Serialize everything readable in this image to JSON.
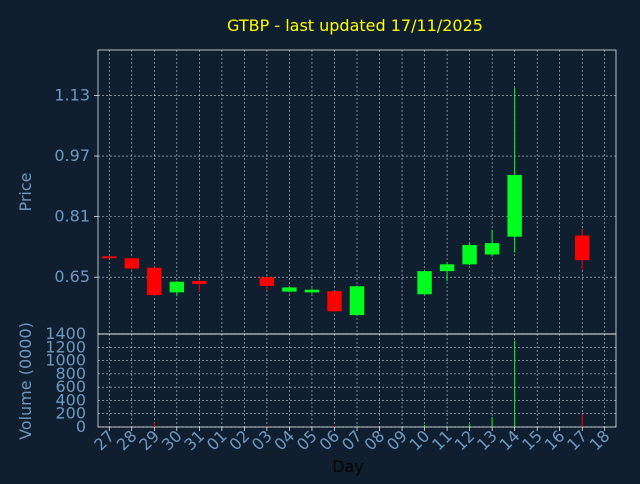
{
  "colors": {
    "background": "#0f1f30",
    "axis": "#ffffff",
    "grid": "#ffffff",
    "title": "#ffff00",
    "label": "#6f98bf",
    "up": "#00ff20",
    "down": "#ff0000"
  },
  "chart_data": [
    {
      "type": "candlestick",
      "title": "GTBP - last updated 17/11/2025",
      "ylabel": "Price",
      "xlabel": "Day",
      "ylim": [
        0.5,
        1.25
      ],
      "yticks": [
        0.65,
        0.81,
        0.97,
        1.13
      ],
      "ytick_labels": [
        "0.65",
        "0.81",
        "0.97",
        "1.13"
      ],
      "grid": true,
      "x_tick_labels": [
        "27",
        "28",
        "29",
        "30",
        "31",
        "01",
        "02",
        "03",
        "04",
        "05",
        "06",
        "07",
        "08",
        "09",
        "10",
        "11",
        "12",
        "13",
        "14",
        "15",
        "16",
        "17",
        "18"
      ],
      "candles": [
        {
          "day": "27",
          "open": 0.705,
          "high": 0.705,
          "low": 0.7,
          "close": 0.7
        },
        {
          "day": "28",
          "open": 0.7,
          "high": 0.702,
          "low": 0.67,
          "close": 0.673
        },
        {
          "day": "29",
          "open": 0.675,
          "high": 0.677,
          "low": 0.6,
          "close": 0.603
        },
        {
          "day": "30",
          "open": 0.61,
          "high": 0.64,
          "low": 0.6,
          "close": 0.638
        },
        {
          "day": "31",
          "open": 0.64,
          "high": 0.642,
          "low": 0.61,
          "close": 0.632
        },
        {
          "day": "03",
          "open": 0.65,
          "high": 0.65,
          "low": 0.615,
          "close": 0.627
        },
        {
          "day": "04",
          "open": 0.612,
          "high": 0.625,
          "low": 0.61,
          "close": 0.623
        },
        {
          "day": "05",
          "open": 0.61,
          "high": 0.62,
          "low": 0.607,
          "close": 0.617
        },
        {
          "day": "06",
          "open": 0.613,
          "high": 0.613,
          "low": 0.558,
          "close": 0.56
        },
        {
          "day": "07",
          "open": 0.55,
          "high": 0.628,
          "low": 0.548,
          "close": 0.626
        },
        {
          "day": "10",
          "open": 0.605,
          "high": 0.668,
          "low": 0.603,
          "close": 0.666
        },
        {
          "day": "11",
          "open": 0.666,
          "high": 0.69,
          "low": 0.64,
          "close": 0.684
        },
        {
          "day": "12",
          "open": 0.684,
          "high": 0.74,
          "low": 0.682,
          "close": 0.735
        },
        {
          "day": "13",
          "open": 0.71,
          "high": 0.775,
          "low": 0.705,
          "close": 0.74
        },
        {
          "day": "14",
          "open": 0.757,
          "high": 1.15,
          "low": 0.715,
          "close": 0.92
        },
        {
          "day": "17",
          "open": 0.76,
          "high": 0.778,
          "low": 0.67,
          "close": 0.695
        }
      ]
    },
    {
      "type": "bar",
      "ylabel": "Volume (0000)",
      "ylim": [
        0,
        1400
      ],
      "yticks": [
        0,
        200,
        400,
        600,
        800,
        1000,
        1200,
        1400
      ],
      "ytick_labels": [
        "0",
        "200",
        "400",
        "600",
        "800",
        "1000",
        "1200",
        "1400"
      ],
      "grid": true,
      "bars": [
        {
          "day": "29",
          "value": 70,
          "direction": "down"
        },
        {
          "day": "03",
          "value": 20,
          "direction": "down"
        },
        {
          "day": "04",
          "value": 10,
          "direction": "up"
        },
        {
          "day": "06",
          "value": 20,
          "direction": "down"
        },
        {
          "day": "07",
          "value": 20,
          "direction": "up"
        },
        {
          "day": "10",
          "value": 30,
          "direction": "up"
        },
        {
          "day": "11",
          "value": 20,
          "direction": "up"
        },
        {
          "day": "12",
          "value": 40,
          "direction": "up"
        },
        {
          "day": "13",
          "value": 150,
          "direction": "up"
        },
        {
          "day": "14",
          "value": 1300,
          "direction": "up"
        },
        {
          "day": "17",
          "value": 190,
          "direction": "down"
        }
      ]
    }
  ]
}
